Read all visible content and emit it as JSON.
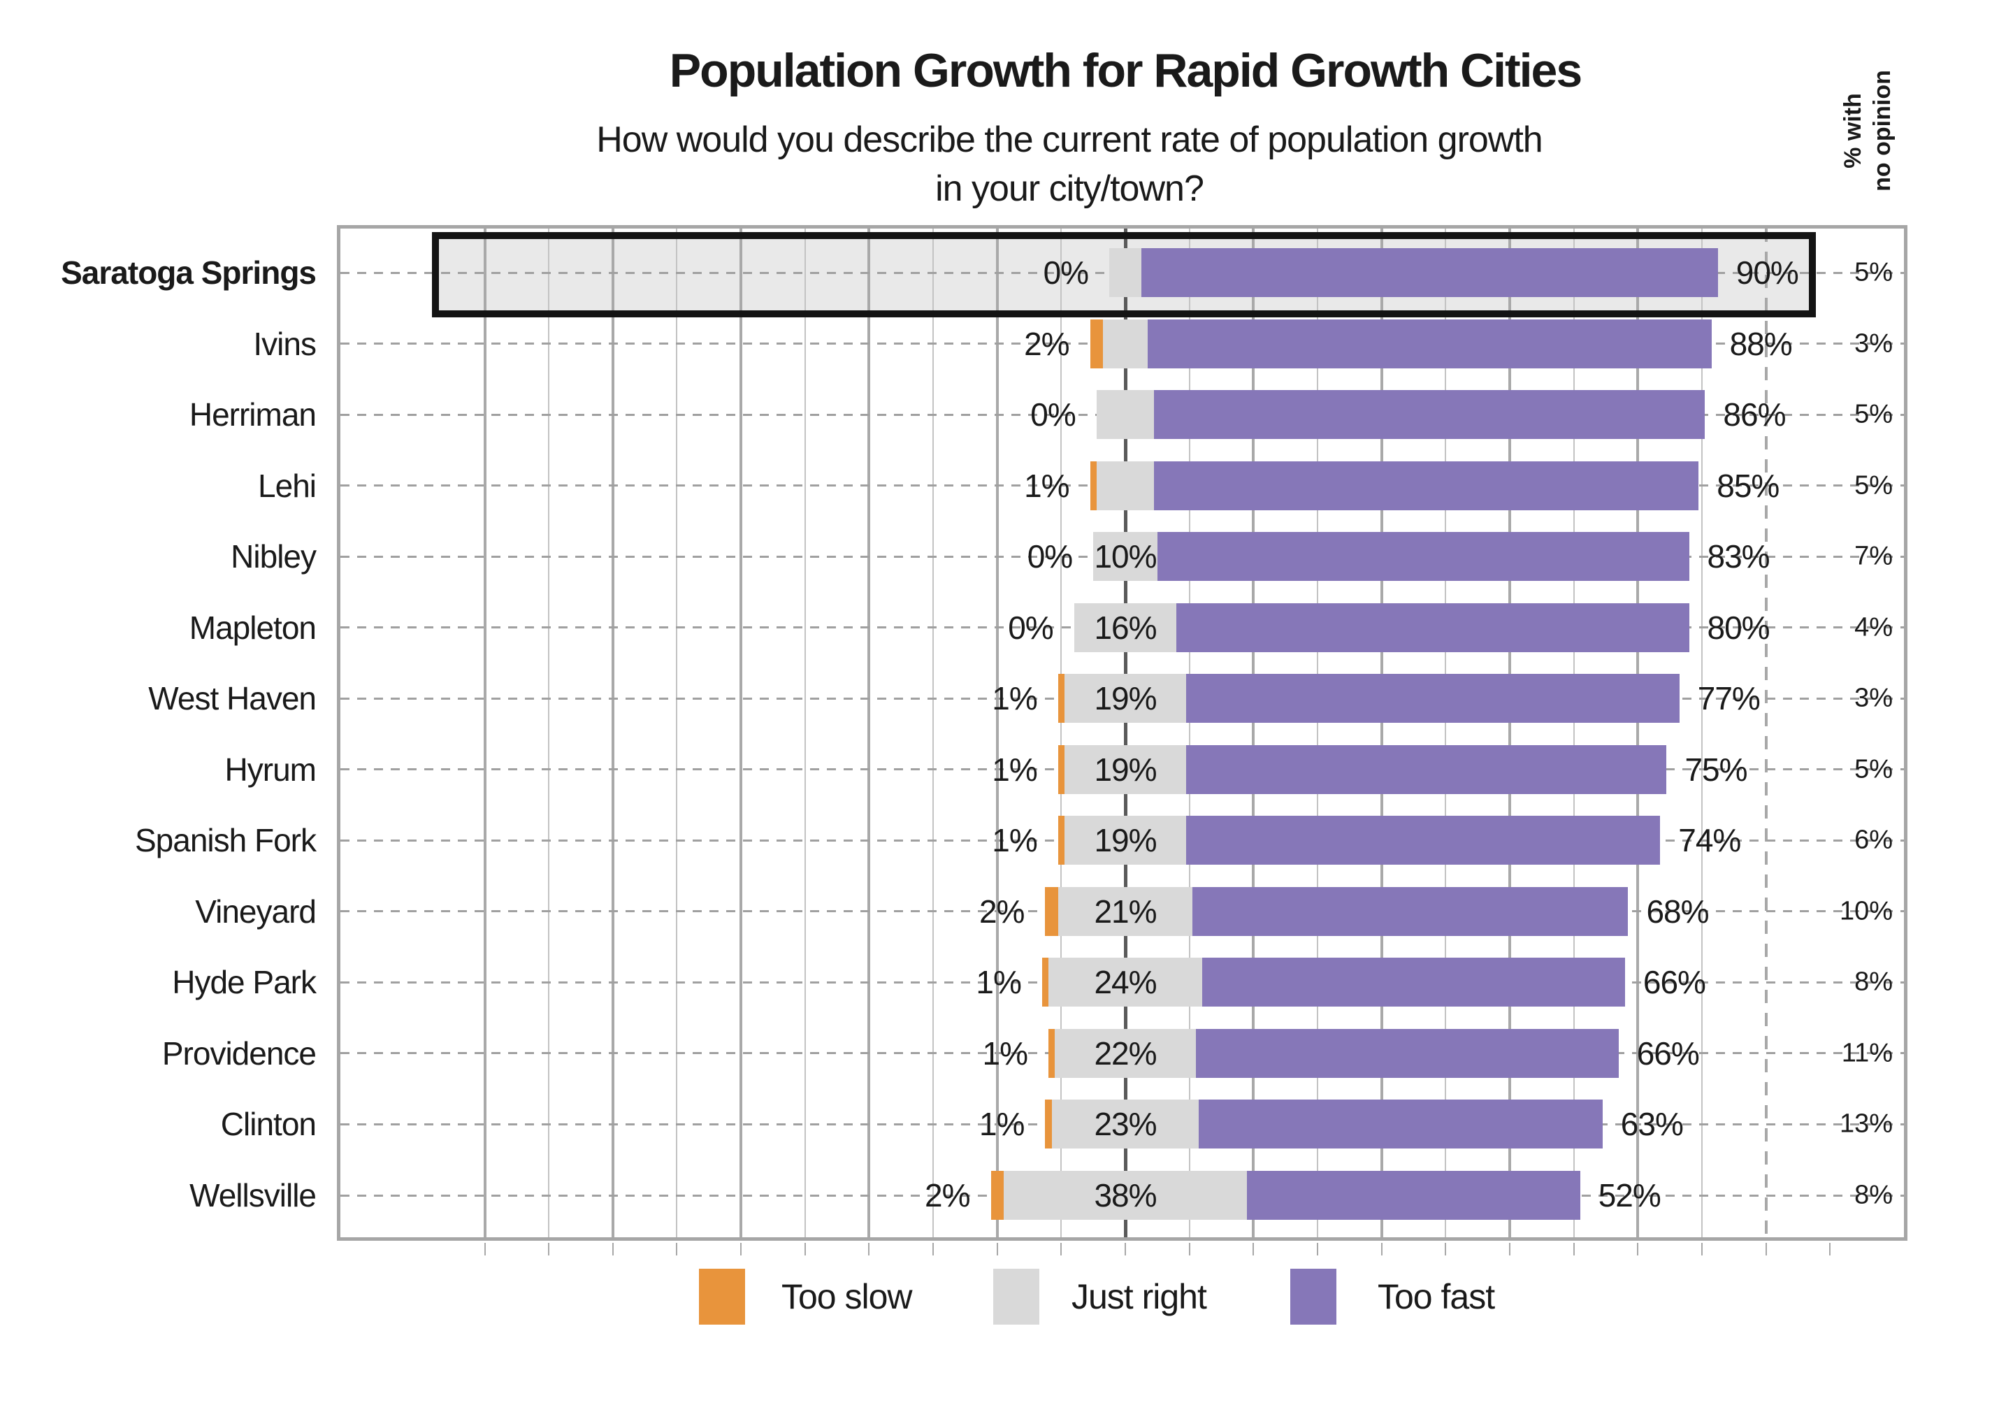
{
  "header": {
    "title": "Population Growth for Rapid Growth Cities",
    "subtitle_line1": "How would you describe the current rate of population growth",
    "subtitle_line2": "in your city/town?"
  },
  "right_axis": {
    "label_line1": "% with",
    "label_line2": "no opinion"
  },
  "legend": {
    "items": [
      {
        "label": "Too slow",
        "color": "#E8943C"
      },
      {
        "label": "Just right",
        "color": "#D9D9D9"
      },
      {
        "label": "Too fast",
        "color": "#8677B8"
      }
    ]
  },
  "highlight": {
    "city": "Saratoga Springs",
    "fill_color": "#E9E9E9",
    "border_color": "#141414"
  },
  "colors": {
    "too_slow": "#E8943C",
    "just_right": "#D9D9D9",
    "too_fast": "#8677B8",
    "plot_border": "#A6A6A6",
    "gridline_major": "#A9A9A9",
    "gridline_minor": "#C3C3C3",
    "center_line": "#5A5A5A",
    "row_dash_line": "#A0A0A0",
    "text": "#1A1A1A"
  },
  "chart_data": {
    "type": "bar",
    "orientation": "horizontal",
    "variant": "diverging-stacked",
    "title": "Population Growth for Rapid Growth Cities",
    "subtitle": "How would you describe the current rate of population growth in your city/town?",
    "categories": [
      "Saratoga Springs",
      "Ivins",
      "Herriman",
      "Lehi",
      "Nibley",
      "Mapleton",
      "West Haven",
      "Hyrum",
      "Spanish Fork",
      "Vineyard",
      "Hyde Park",
      "Providence",
      "Clinton",
      "Wellsville"
    ],
    "series": [
      {
        "name": "Too slow",
        "values": [
          0,
          2,
          0,
          1,
          0,
          0,
          1,
          1,
          1,
          2,
          1,
          1,
          1,
          2
        ]
      },
      {
        "name": "Just right",
        "values": [
          5,
          7,
          9,
          9,
          10,
          16,
          19,
          19,
          19,
          21,
          24,
          22,
          23,
          38
        ]
      },
      {
        "name": "Too fast",
        "values": [
          90,
          88,
          86,
          85,
          83,
          80,
          77,
          75,
          74,
          68,
          66,
          66,
          63,
          52
        ]
      }
    ],
    "no_opinion_column": {
      "header": "% with no opinion",
      "values": [
        5,
        3,
        5,
        5,
        7,
        4,
        3,
        5,
        6,
        10,
        8,
        11,
        13,
        8
      ]
    },
    "value_label_rules": {
      "too_slow": "always shown left of bar",
      "just_right": "shown inside bar only when value >= 10",
      "too_fast": "always shown right of bar"
    },
    "axis": {
      "unit": "%",
      "neutral_category_centered_on_zero": true,
      "gridline_step_pct": 10,
      "gridlines_from_pct": -100,
      "gridlines_to_pct": 100,
      "dashed_reference_line_pct": 100,
      "x_range_pct": [
        -123,
        123
      ],
      "grid": true,
      "legend_position": "bottom"
    },
    "highlighted_category": "Saratoga Springs"
  }
}
